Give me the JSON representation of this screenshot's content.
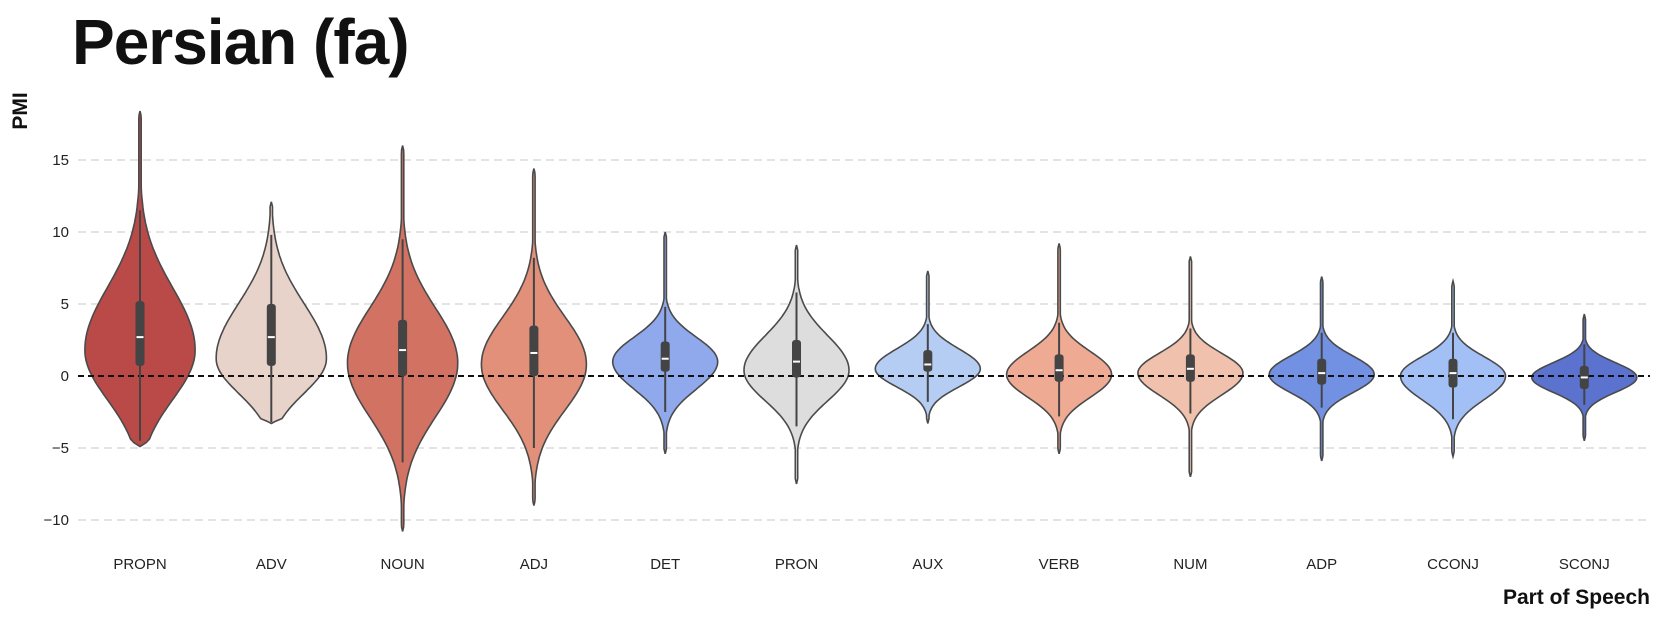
{
  "chart_data": {
    "type": "violin",
    "title": "Persian (fa)",
    "xlabel": "Part of Speech",
    "ylabel": "PMI",
    "ylim": [
      -11,
      18.5
    ],
    "yticks": [
      15,
      10,
      5,
      0,
      -5,
      -10
    ],
    "grid": true,
    "reference_line": 0,
    "categories": [
      "PROPN",
      "ADV",
      "NOUN",
      "ADJ",
      "DET",
      "PRON",
      "AUX",
      "VERB",
      "NUM",
      "ADP",
      "CCONJ",
      "SCONJ"
    ],
    "series": [
      {
        "name": "PROPN",
        "color": "#b94a48",
        "min": -4.9,
        "max": 18.4,
        "q1": 0.7,
        "median": 2.7,
        "q3": 5.2,
        "whisker_low": -4.5,
        "whisker_high": 11.5,
        "mode": 1.8,
        "density_width": 0.42
      },
      {
        "name": "ADV",
        "color": "#e8d3ca",
        "min": -3.3,
        "max": 12.1,
        "q1": 0.7,
        "median": 2.7,
        "q3": 5.0,
        "whisker_low": -3.2,
        "whisker_high": 9.8,
        "mode": 1.2,
        "density_width": 0.42
      },
      {
        "name": "NOUN",
        "color": "#d27262",
        "min": -10.8,
        "max": 16.0,
        "q1": 0.0,
        "median": 1.8,
        "q3": 3.9,
        "whisker_low": -6.0,
        "whisker_high": 9.5,
        "mode": 0.9,
        "density_width": 0.42
      },
      {
        "name": "ADJ",
        "color": "#e2907a",
        "min": -9.0,
        "max": 14.4,
        "q1": 0.0,
        "median": 1.6,
        "q3": 3.5,
        "whisker_low": -5.0,
        "whisker_high": 8.2,
        "mode": 0.8,
        "density_width": 0.4
      },
      {
        "name": "DET",
        "color": "#8fa9ec",
        "min": -5.4,
        "max": 10.0,
        "q1": 0.3,
        "median": 1.2,
        "q3": 2.4,
        "whisker_low": -2.5,
        "whisker_high": 4.8,
        "mode": 1.0,
        "density_width": 0.4
      },
      {
        "name": "PRON",
        "color": "#dddddd",
        "min": -7.5,
        "max": 9.1,
        "q1": -0.1,
        "median": 1.0,
        "q3": 2.5,
        "whisker_low": -3.5,
        "whisker_high": 5.8,
        "mode": 0.4,
        "density_width": 0.4
      },
      {
        "name": "AUX",
        "color": "#b6cdf3",
        "min": -3.3,
        "max": 7.3,
        "q1": 0.3,
        "median": 0.8,
        "q3": 1.8,
        "whisker_low": -1.8,
        "whisker_high": 3.6,
        "mode": 0.5,
        "density_width": 0.4
      },
      {
        "name": "VERB",
        "color": "#eeaa92",
        "min": -5.4,
        "max": 9.2,
        "q1": -0.4,
        "median": 0.4,
        "q3": 1.5,
        "whisker_low": -2.8,
        "whisker_high": 3.7,
        "mode": 0.1,
        "density_width": 0.4
      },
      {
        "name": "NUM",
        "color": "#f0c2ad",
        "min": -7.0,
        "max": 8.3,
        "q1": -0.4,
        "median": 0.5,
        "q3": 1.5,
        "whisker_low": -2.6,
        "whisker_high": 3.3,
        "mode": 0.2,
        "density_width": 0.4
      },
      {
        "name": "ADP",
        "color": "#7291e2",
        "min": -5.9,
        "max": 6.9,
        "q1": -0.6,
        "median": 0.2,
        "q3": 1.2,
        "whisker_low": -2.2,
        "whisker_high": 3.0,
        "mode": 0.1,
        "density_width": 0.4
      },
      {
        "name": "CCONJ",
        "color": "#a3c0f6",
        "min": -5.6,
        "max": 6.6,
        "q1": -0.8,
        "median": 0.2,
        "q3": 1.2,
        "whisker_low": -3.0,
        "whisker_high": 3.0,
        "mode": 0.0,
        "density_width": 0.4
      },
      {
        "name": "SCONJ",
        "color": "#5b72cf",
        "min": -4.5,
        "max": 4.3,
        "q1": -0.9,
        "median": -0.1,
        "q3": 0.7,
        "whisker_low": -2.0,
        "whisker_high": 2.2,
        "mode": -0.1,
        "density_width": 0.4
      }
    ]
  }
}
